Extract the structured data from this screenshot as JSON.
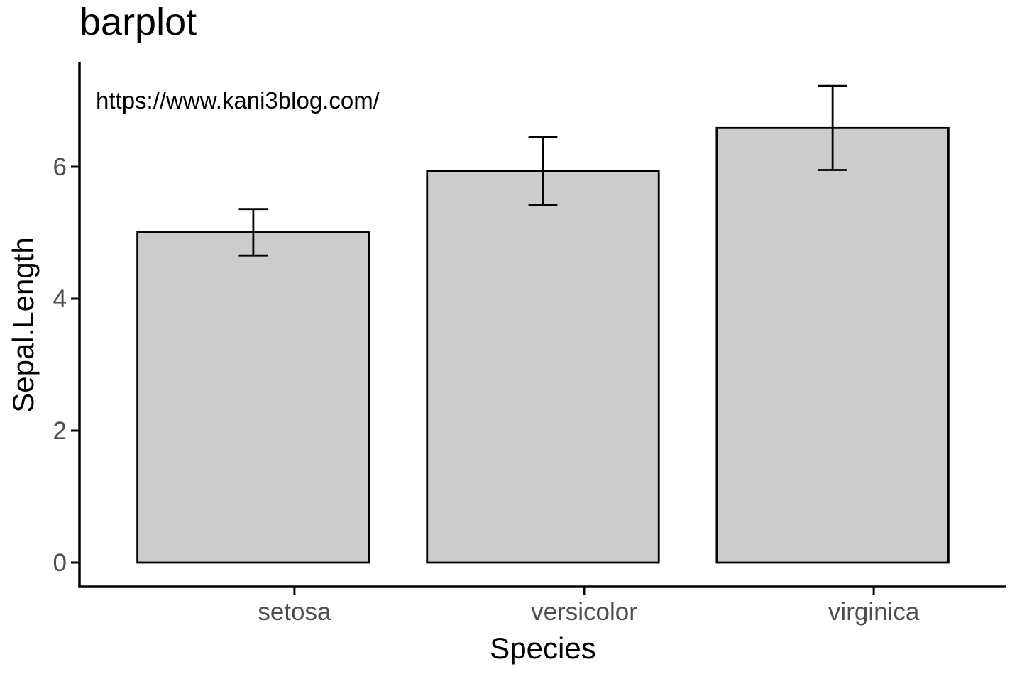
{
  "chart_data": {
    "type": "bar",
    "title": "barplot",
    "annotation": "https://www.kani3blog.com/",
    "xlabel": "Species",
    "ylabel": "Sepal.Length",
    "categories": [
      "setosa",
      "versicolor",
      "virginica"
    ],
    "values": [
      5.006,
      5.936,
      6.588
    ],
    "error_low": [
      4.654,
      5.42,
      5.952
    ],
    "error_high": [
      5.358,
      6.452,
      7.224
    ],
    "ylim": [
      -0.36,
      7.56
    ],
    "yticks": [
      "0",
      "2",
      "4",
      "6"
    ],
    "ytick_values": [
      0,
      2,
      4,
      6
    ],
    "bar_color": "#cccccc",
    "grid": false,
    "legend": "none"
  }
}
